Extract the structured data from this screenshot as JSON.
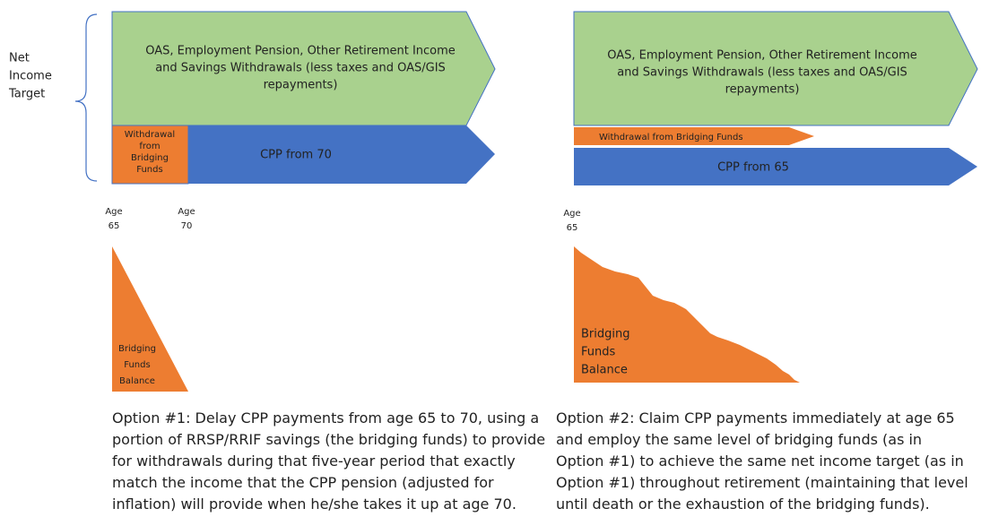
{
  "net_income_target": {
    "lines": [
      "Net",
      "Income",
      "Target"
    ]
  },
  "option1": {
    "green_arrow": {
      "lines": [
        "OAS, Employment Pension, Other Retirement Income",
        "and Savings Withdrawals (less taxes and OAS/GIS",
        "repayments)"
      ]
    },
    "orange_box": {
      "lines": [
        "Withdrawal",
        "from",
        "Bridging",
        "Funds"
      ]
    },
    "blue_arrow": "CPP from 70",
    "age_start": {
      "lines": [
        "Age",
        "65"
      ]
    },
    "age_end": {
      "lines": [
        "Age",
        "70"
      ]
    },
    "balance": {
      "lines": [
        "Bridging",
        "Funds",
        "Balance"
      ]
    },
    "caption": {
      "lines": [
        "Option #1: Delay CPP payments from age 65 to 70, using a",
        "portion of RRSP/RRIF savings (the bridging funds) to provide",
        "for withdrawals during that five-year period that exactly",
        "match the income that the CPP pension (adjusted for",
        "inflation) will provide when he/she takes it up at age 70."
      ]
    }
  },
  "option2": {
    "green_arrow": {
      "lines": [
        "OAS, Employment Pension, Other Retirement Income",
        "and Savings Withdrawals (less taxes and OAS/GIS",
        "repayments)"
      ]
    },
    "orange_arrow": "Withdrawal from Bridging Funds",
    "blue_arrow": "CPP from 65",
    "age_start": {
      "lines": [
        "Age",
        "65"
      ]
    },
    "balance": {
      "lines": [
        "Bridging",
        "Funds",
        "Balance"
      ]
    },
    "caption": {
      "lines": [
        "Option #2: Claim CPP payments immediately at age 65",
        "and employ the same level of bridging funds (as in",
        "Option #1) to achieve the same net income target (as in",
        "Option #1) throughout retirement (maintaining that level",
        "until death or the exhaustion of the bridging funds)."
      ]
    }
  }
}
